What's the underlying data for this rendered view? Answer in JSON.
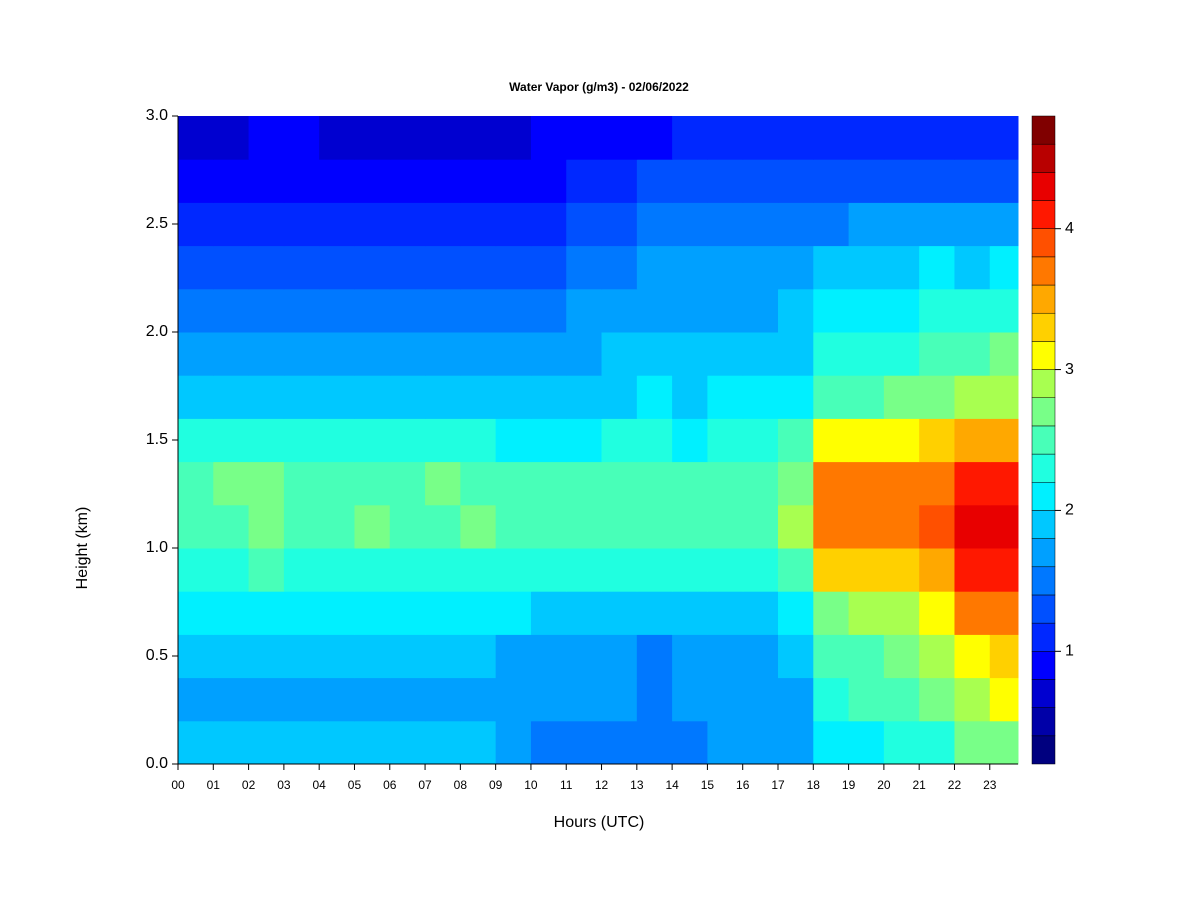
{
  "chart_data": {
    "type": "heatmap",
    "title": "Water Vapor (g/m3) - 02/06/2022",
    "x_label": "Hours (UTC)",
    "y_label": "Height (km)",
    "x": [
      0,
      1,
      2,
      3,
      4,
      5,
      6,
      7,
      8,
      9,
      10,
      11,
      12,
      13,
      14,
      15,
      16,
      17,
      18,
      19,
      20,
      21,
      22,
      23
    ],
    "y": [
      0,
      0.2,
      0.4,
      0.6,
      0.8,
      1.0,
      1.2,
      1.4,
      1.6,
      1.8,
      2.0,
      2.2,
      2.4,
      2.6,
      2.8
    ],
    "xlim": [
      0,
      23.8
    ],
    "ylim": [
      0,
      3
    ],
    "xticks": [
      {
        "value": 0,
        "label": "00"
      },
      {
        "value": 1,
        "label": "01"
      },
      {
        "value": 2,
        "label": "02"
      },
      {
        "value": 3,
        "label": "03"
      },
      {
        "value": 4,
        "label": "04"
      },
      {
        "value": 5,
        "label": "05"
      },
      {
        "value": 6,
        "label": "06"
      },
      {
        "value": 7,
        "label": "07"
      },
      {
        "value": 8,
        "label": "08"
      },
      {
        "value": 9,
        "label": "09"
      },
      10,
      11,
      12,
      13,
      14,
      15,
      16,
      17,
      18,
      19,
      20,
      21,
      22,
      23
    ],
    "yticks": [
      {
        "value": 0,
        "label": "0.0"
      },
      0.5,
      {
        "value": 1,
        "label": "1.0"
      },
      1.5,
      {
        "value": 2,
        "label": "2.0"
      },
      2.5,
      {
        "value": 3,
        "label": "3.0"
      }
    ],
    "z": [
      [
        1.8,
        1.8,
        1.8,
        1.8,
        1.8,
        1.8,
        1.8,
        1.8,
        1.8,
        1.7,
        1.5,
        1.5,
        1.5,
        1.5,
        1.5,
        1.6,
        1.6,
        1.6,
        2.0,
        2.1,
        2.2,
        2.3,
        2.6,
        2.7
      ],
      [
        1.7,
        1.7,
        1.7,
        1.7,
        1.7,
        1.7,
        1.7,
        1.7,
        1.7,
        1.7,
        1.6,
        1.6,
        1.6,
        1.5,
        1.6,
        1.6,
        1.6,
        1.7,
        2.3,
        2.4,
        2.5,
        2.6,
        2.9,
        3.0
      ],
      [
        1.8,
        1.8,
        1.8,
        1.8,
        1.8,
        1.8,
        1.8,
        1.8,
        1.8,
        1.7,
        1.6,
        1.6,
        1.6,
        1.5,
        1.6,
        1.6,
        1.6,
        1.8,
        2.4,
        2.5,
        2.6,
        2.8,
        3.1,
        3.2
      ],
      [
        2.0,
        2.0,
        2.0,
        2.0,
        2.0,
        2.0,
        2.0,
        2.0,
        2.0,
        2.0,
        1.9,
        1.9,
        1.9,
        1.8,
        1.9,
        1.9,
        1.9,
        2.1,
        2.7,
        2.8,
        2.9,
        3.1,
        3.6,
        3.7
      ],
      [
        2.3,
        2.3,
        2.4,
        2.3,
        2.3,
        2.3,
        2.3,
        2.3,
        2.3,
        2.2,
        2.2,
        2.2,
        2.2,
        2.2,
        2.2,
        2.2,
        2.3,
        2.5,
        3.2,
        3.3,
        3.3,
        3.5,
        4.0,
        4.0
      ],
      [
        2.5,
        2.5,
        2.6,
        2.5,
        2.5,
        2.6,
        2.5,
        2.5,
        2.6,
        2.4,
        2.4,
        2.4,
        2.4,
        2.4,
        2.4,
        2.5,
        2.5,
        2.8,
        3.7,
        3.7,
        3.7,
        3.8,
        4.2,
        4.2
      ],
      [
        2.5,
        2.6,
        2.6,
        2.5,
        2.5,
        2.5,
        2.5,
        2.6,
        2.5,
        2.4,
        2.4,
        2.4,
        2.4,
        2.5,
        2.4,
        2.5,
        2.5,
        2.7,
        3.6,
        3.6,
        3.6,
        3.7,
        4.0,
        4.0
      ],
      [
        2.2,
        2.3,
        2.3,
        2.3,
        2.2,
        2.3,
        2.2,
        2.3,
        2.2,
        2.1,
        2.1,
        2.1,
        2.2,
        2.3,
        2.1,
        2.2,
        2.2,
        2.4,
        3.0,
        3.0,
        3.1,
        3.2,
        3.4,
        3.5
      ],
      [
        1.9,
        1.9,
        1.9,
        1.9,
        1.9,
        1.9,
        1.9,
        1.9,
        1.9,
        1.9,
        1.9,
        1.9,
        1.9,
        2.0,
        1.9,
        2.0,
        2.0,
        2.1,
        2.5,
        2.5,
        2.6,
        2.7,
        2.9,
        2.9
      ],
      [
        1.6,
        1.7,
        1.7,
        1.7,
        1.7,
        1.7,
        1.7,
        1.7,
        1.6,
        1.7,
        1.7,
        1.7,
        1.8,
        1.8,
        1.8,
        1.8,
        1.8,
        1.9,
        2.2,
        2.3,
        2.3,
        2.4,
        2.5,
        2.6
      ],
      [
        1.4,
        1.5,
        1.5,
        1.5,
        1.5,
        1.5,
        1.5,
        1.4,
        1.4,
        1.5,
        1.5,
        1.6,
        1.7,
        1.7,
        1.7,
        1.7,
        1.7,
        1.8,
        2.0,
        2.1,
        2.1,
        2.2,
        2.2,
        2.3
      ],
      [
        1.2,
        1.3,
        1.3,
        1.3,
        1.3,
        1.3,
        1.2,
        1.2,
        1.2,
        1.3,
        1.3,
        1.4,
        1.5,
        1.6,
        1.6,
        1.6,
        1.6,
        1.7,
        1.8,
        1.9,
        1.9,
        2.0,
        1.9,
        2.0
      ],
      [
        1.0,
        1.1,
        1.1,
        1.1,
        1.1,
        1.0,
        1.0,
        1.0,
        1.0,
        1.0,
        1.1,
        1.2,
        1.3,
        1.4,
        1.4,
        1.4,
        1.4,
        1.5,
        1.5,
        1.6,
        1.6,
        1.6,
        1.6,
        1.6
      ],
      [
        0.8,
        0.9,
        0.9,
        0.9,
        0.9,
        0.8,
        0.8,
        0.8,
        0.8,
        0.8,
        0.9,
        1.0,
        1.1,
        1.2,
        1.2,
        1.2,
        1.2,
        1.2,
        1.2,
        1.3,
        1.3,
        1.3,
        1.3,
        1.3
      ],
      [
        0.6,
        0.7,
        0.8,
        0.8,
        0.7,
        0.7,
        0.7,
        0.7,
        0.7,
        0.7,
        0.8,
        0.8,
        0.9,
        0.9,
        1.0,
        1.0,
        1.0,
        1.0,
        1.1,
        1.0,
        1.0,
        1.0,
        1.0,
        1.1
      ]
    ],
    "levels": [
      0.2,
      0.4,
      0.6,
      0.8,
      1.0,
      1.2,
      1.4,
      1.6,
      1.8,
      2.0,
      2.2,
      2.4,
      2.6,
      2.8,
      3.0,
      3.2,
      3.4,
      3.6,
      3.8,
      4.0,
      4.2,
      4.4,
      4.6,
      4.8
    ],
    "colors": [
      "#00007f",
      "#0000a8",
      "#0000d0",
      "#0000ff",
      "#0028ff",
      "#0050ff",
      "#0078ff",
      "#00a0ff",
      "#00c8ff",
      "#00f0ff",
      "#20ffe0",
      "#48ffb8",
      "#78ff88",
      "#a8ff50",
      "#ffff00",
      "#ffd000",
      "#ffa800",
      "#ff7800",
      "#ff5000",
      "#ff1800",
      "#e80000",
      "#b80000",
      "#800000"
    ],
    "colorbar_ticks": [
      1,
      2,
      3,
      4
    ]
  }
}
